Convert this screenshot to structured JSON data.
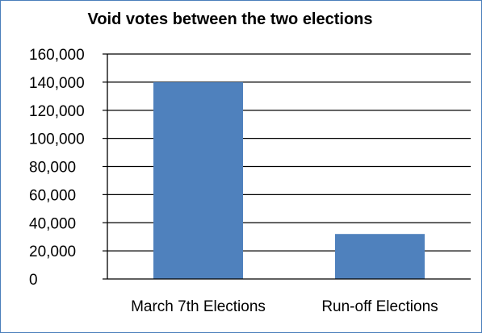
{
  "chart_data": {
    "type": "bar",
    "title": "Void votes between the two elections",
    "xlabel": "",
    "ylabel": "",
    "categories": [
      "March 7th Elections",
      "Run-off Elections"
    ],
    "values": [
      140000,
      32000
    ],
    "ylim": [
      0,
      160000
    ],
    "yticks": [
      0,
      20000,
      40000,
      60000,
      80000,
      100000,
      120000,
      140000,
      160000
    ],
    "ytick_labels": [
      "0",
      "20,000",
      "40,000",
      "60,000",
      "80,000",
      "100,000",
      "120,000",
      "140,000",
      "160,000"
    ],
    "grid": true,
    "legend": "none",
    "bar_color": "#4f81bd",
    "grid_color": "#000000",
    "border_color": "#4a7ebb"
  }
}
